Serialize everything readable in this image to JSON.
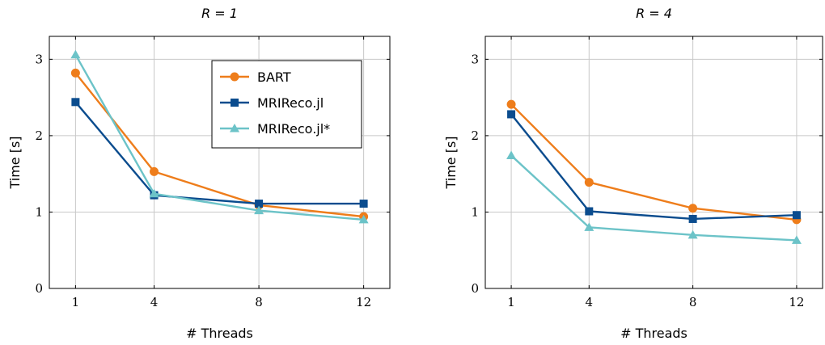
{
  "chart_data": [
    {
      "type": "line",
      "title": "R = 1",
      "xlabel": "# Threads",
      "ylabel": "Time [s]",
      "x": [
        1,
        4,
        8,
        12
      ],
      "xticks": [
        "1",
        "4",
        "8",
        "12"
      ],
      "yticks": [
        "0",
        "1",
        "2",
        "3"
      ],
      "ylim": [
        0,
        3.3
      ],
      "grid": true,
      "legend": "top-right",
      "series": [
        {
          "name": "BART",
          "color": "#ee7d1b",
          "marker": "circle",
          "values": [
            2.82,
            1.53,
            1.09,
            0.94
          ]
        },
        {
          "name": "MRIReco.jl",
          "color": "#0b4c8e",
          "marker": "square",
          "values": [
            2.44,
            1.22,
            1.11,
            1.11
          ]
        },
        {
          "name": "MRIReco.jl*",
          "color": "#6cc3c8",
          "marker": "triangle",
          "values": [
            3.06,
            1.24,
            1.02,
            0.9
          ]
        }
      ]
    },
    {
      "type": "line",
      "title": "R = 4",
      "xlabel": "# Threads",
      "ylabel": "Time [s]",
      "x": [
        1,
        4,
        8,
        12
      ],
      "xticks": [
        "1",
        "4",
        "8",
        "12"
      ],
      "yticks": [
        "0",
        "1",
        "2",
        "3"
      ],
      "ylim": [
        0,
        3.3
      ],
      "grid": true,
      "series": [
        {
          "name": "BART",
          "color": "#ee7d1b",
          "marker": "circle",
          "values": [
            2.41,
            1.39,
            1.05,
            0.9
          ]
        },
        {
          "name": "MRIReco.jl",
          "color": "#0b4c8e",
          "marker": "square",
          "values": [
            2.28,
            1.01,
            0.91,
            0.96
          ]
        },
        {
          "name": "MRIReco.jl*",
          "color": "#6cc3c8",
          "marker": "triangle",
          "values": [
            1.74,
            0.8,
            0.7,
            0.63
          ]
        }
      ]
    }
  ]
}
